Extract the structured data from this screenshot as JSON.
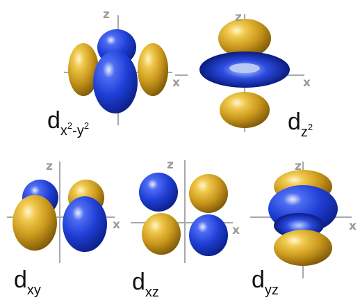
{
  "axis_labels": {
    "z": "z",
    "x": "x"
  },
  "colors": {
    "positive_lobe": "#1f3fd6",
    "negative_lobe": "#d8a71e",
    "axis": "#a8a8a8",
    "label": "#111111"
  },
  "orbitals": [
    {
      "id": "dx2-y2",
      "base": "d",
      "sub": "x",
      "sup1": "2",
      "mid": "-y",
      "sup2": "2"
    },
    {
      "id": "dz2",
      "base": "d",
      "sub": "z",
      "sup1": "2"
    },
    {
      "id": "dxy",
      "base": "d",
      "sub": "xy"
    },
    {
      "id": "dxz",
      "base": "d",
      "sub": "xz"
    },
    {
      "id": "dyz",
      "base": "d",
      "sub": "yz"
    }
  ]
}
